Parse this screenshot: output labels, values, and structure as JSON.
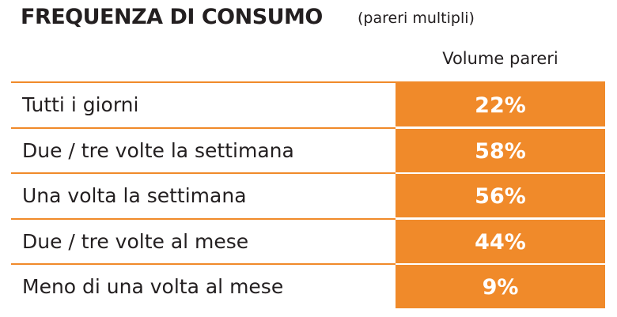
{
  "header": {
    "title": "FREQUENZA DI CONSUMO",
    "subtitle": "(pareri multipli)"
  },
  "table": {
    "column_header": "Volume pareri",
    "rows": [
      [
        "Tutti i giorni",
        "22%"
      ],
      [
        "Due / tre volte la settimana",
        "58%"
      ],
      [
        "Una volta la settimana",
        "56%"
      ],
      [
        "Due / tre volte al mese",
        "44%"
      ],
      [
        "Meno di una volta al mese",
        "9%"
      ]
    ]
  }
}
